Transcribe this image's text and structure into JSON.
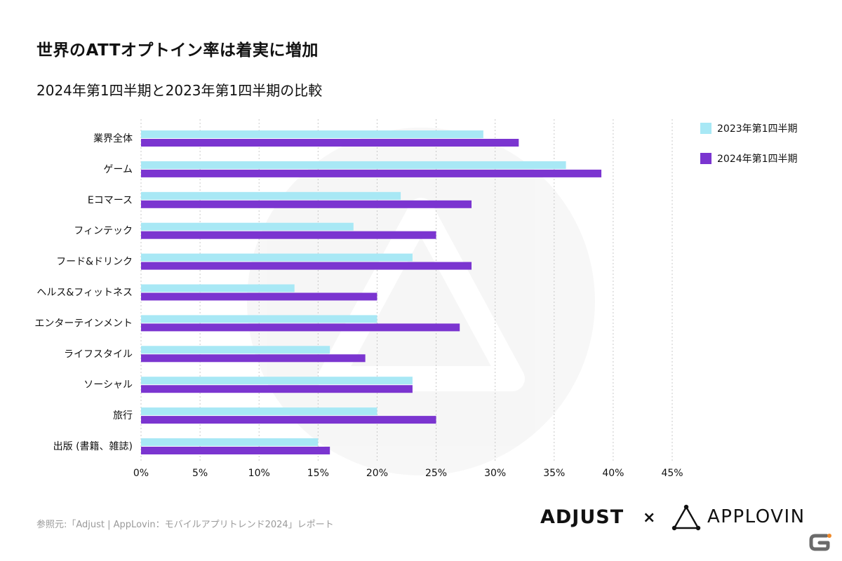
{
  "header": {
    "title": "世界のATTオプトイン率は着実に増加",
    "subtitle": "2024年第1四半期と2023年第1四半期の比較"
  },
  "chart_data": {
    "type": "bar",
    "orientation": "horizontal",
    "categories": [
      "業界全体",
      "ゲーム",
      "Eコマース",
      "フィンテック",
      "フード&ドリンク",
      "ヘルス&フィットネス",
      "エンターテインメント",
      "ライフスタイル",
      "ソーシャル",
      "旅行",
      "出版 (書籍、雑誌)"
    ],
    "series": [
      {
        "name": "2023年第1四半期",
        "color": "#a8e8f5",
        "values": [
          29,
          36,
          22,
          18,
          23,
          13,
          20,
          16,
          23,
          20,
          15
        ]
      },
      {
        "name": "2024年第1四半期",
        "color": "#7b35d0",
        "values": [
          32,
          39,
          28,
          25,
          28,
          20,
          27,
          19,
          23,
          25,
          16
        ]
      }
    ],
    "xlim": [
      0,
      45
    ],
    "xticks": [
      "0%",
      "5%",
      "10%",
      "15%",
      "20%",
      "25%",
      "30%",
      "35%",
      "40%",
      "45%"
    ],
    "grid": "vertical dotted",
    "legend_position": "top-right"
  },
  "footer": {
    "source": "参照元:「Adjust | AppLovin：モバイルアプリトレンド2024」レポート",
    "brand_left": "ADJUST",
    "brand_separator": "×",
    "brand_right": "APPLOVIN"
  },
  "watermark_icon": "applovin-triangle-watermark-icon",
  "corner_icon": "site-logo-icon"
}
